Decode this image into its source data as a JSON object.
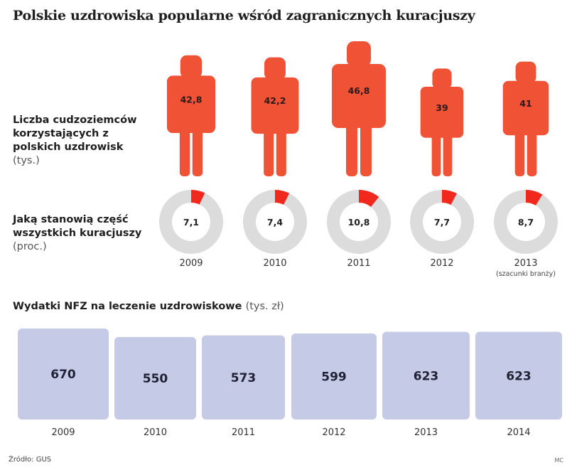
{
  "title": "Polskie uzdrowiska popularne wśród zagranicznych kuracjuszy",
  "labels": {
    "people": "Liczba cudzoziemców korzystających z polskich uzdrowisk",
    "people_unit": "(tys.)",
    "share": "Jaką stanowią część wszystkich kuracjuszy",
    "share_unit": "(proc.)",
    "spending": "Wydatki NFZ na leczenie uzdrowiskowe",
    "spending_unit": "(tys. zł)"
  },
  "source": "Źródło: GUS",
  "credit": "MC",
  "colors": {
    "figure": "#f05236",
    "donut_accent": "#f0281e",
    "donut_rest": "#dcdcdc",
    "box": "#c5cae6"
  },
  "chart_data": [
    {
      "type": "bar",
      "title": "Liczba cudzoziemców korzystających z polskich uzdrowisk (tys.)",
      "categories": [
        "2009",
        "2010",
        "2011",
        "2012",
        "2013"
      ],
      "values": [
        42.8,
        42.2,
        46.8,
        39,
        41
      ],
      "value_labels": [
        "42,8",
        "42,2",
        "46,8",
        "39",
        "41"
      ],
      "category_notes": [
        "",
        "",
        "",
        "",
        "(szacunki branży)"
      ],
      "mark": "person-icon"
    },
    {
      "type": "pie",
      "title": "Jaką stanowią część wszystkich kuracjuszy (proc.)",
      "categories": [
        "2009",
        "2010",
        "2011",
        "2012",
        "2013"
      ],
      "values": [
        7.1,
        7.4,
        10.8,
        7.7,
        8.7
      ],
      "value_labels": [
        "7,1",
        "7,4",
        "10,8",
        "7,7",
        "8,7"
      ],
      "category_notes": [
        "",
        "",
        "",
        "",
        "(szacunki branży)"
      ],
      "mark": "donut"
    },
    {
      "type": "bar",
      "title": "Wydatki NFZ na leczenie uzdrowiskowe (tys. zł)",
      "categories": [
        "2009",
        "2010",
        "2011",
        "2012",
        "2013",
        "2014"
      ],
      "values": [
        670,
        550,
        573,
        599,
        623,
        623
      ],
      "value_labels": [
        "670",
        "550",
        "573",
        "599",
        "623",
        "623"
      ],
      "mark": "square"
    }
  ]
}
